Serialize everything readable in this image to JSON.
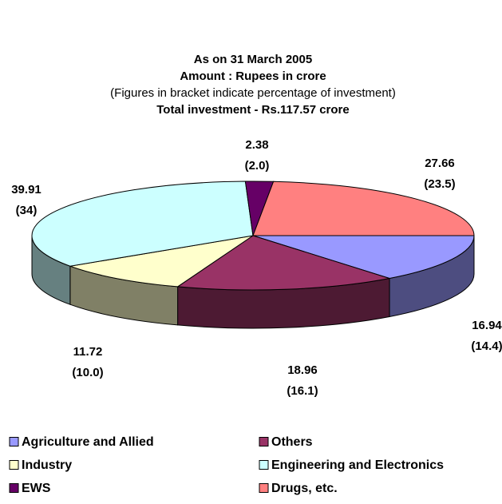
{
  "chart_data": {
    "type": "pie",
    "title": "As on 31 March 2005",
    "subtitle": "Amount : Rupees in crore",
    "note": "(Figures in bracket indicate percentage of investment)",
    "total": "Total investment - Rs.117.57 crore",
    "categories": [
      "Agriculture and Allied",
      "Others",
      "Industry",
      "Engineering and Electronics",
      "EWS",
      "Drugs, etc."
    ],
    "values": [
      16.94,
      18.96,
      11.72,
      39.91,
      2.38,
      27.66
    ],
    "percentages": [
      14.4,
      16.1,
      10.0,
      34,
      2.0,
      23.5
    ],
    "percentage_labels": [
      "(14.4)",
      "(16.1)",
      "(10.0)",
      "(34)",
      "(2.0)",
      "(23.5)"
    ],
    "colors": [
      "#9999ff",
      "#993366",
      "#ffffcc",
      "#ccffff",
      "#660066",
      "#ff8080"
    ],
    "legend": "bottom"
  }
}
